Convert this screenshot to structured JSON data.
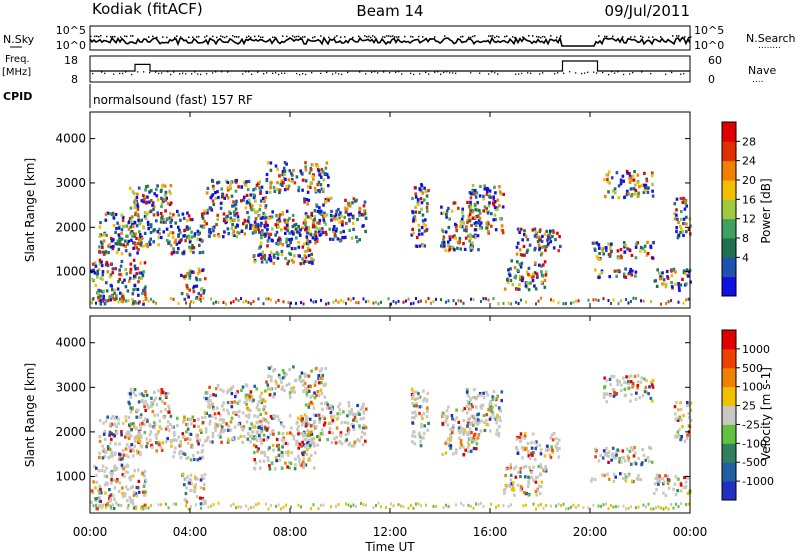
{
  "header": {
    "station": "Kodiak (fitACF)",
    "beam": "Beam 14",
    "date": "09/Jul/2011"
  },
  "summary_panels": {
    "nsky_label": "N.Sky",
    "nsearch_label": "N.Search",
    "nsearch_key": "........",
    "nsky_ticks": [
      "10^5",
      "10^0"
    ],
    "freq_label_1": "Freq.",
    "freq_label_2": "[MHz]",
    "freq_ticks": [
      "18",
      "8"
    ],
    "nave_label": "Nave",
    "nave_key": "....",
    "nave_ticks": [
      "60",
      "0"
    ],
    "cpid_label": "CPID",
    "cpid_text": "normalsound (fast) 157 RF",
    "freq_steps": [
      {
        "t0": 0.0,
        "t1": 1.8,
        "mhz": 11.5
      },
      {
        "t0": 1.8,
        "t1": 2.4,
        "mhz": 14.8
      },
      {
        "t0": 2.4,
        "t1": 18.9,
        "mhz": 11.5
      },
      {
        "t0": 18.9,
        "t1": 20.3,
        "mhz": 16.5
      },
      {
        "t0": 20.3,
        "t1": 24.0,
        "mhz": 11.5
      }
    ]
  },
  "chart_data": [
    {
      "type": "heatmap",
      "quantity": "Power",
      "ylabel": "Slant Range [km]",
      "ylim": [
        180,
        4600
      ],
      "yticks": [
        "4000",
        "3000",
        "2000",
        "1000"
      ],
      "colorbar_label": "Power [dB]",
      "colorbar_ticks": [
        "28",
        "24",
        "20",
        "16",
        "12",
        "8",
        "4"
      ],
      "colors": [
        "#1010e0",
        "#2050b0",
        "#207050",
        "#40a060",
        "#a0c840",
        "#f0c000",
        "#f08000",
        "#e03000",
        "#e00000"
      ]
    },
    {
      "type": "heatmap",
      "quantity": "Velocity",
      "ylabel": "Slant Range [km]",
      "ylim": [
        180,
        4600
      ],
      "yticks": [
        "4000",
        "3000",
        "2000",
        "1000"
      ],
      "colorbar_label": "Velocity [m s-1]",
      "colorbar_ticks": [
        "1000",
        "500",
        "100",
        "25",
        "-25",
        "-100",
        "-500",
        "-1000"
      ],
      "colors": [
        "#2030c0",
        "#2060a0",
        "#308060",
        "#60c040",
        "#c8c8c0",
        "#f0c000",
        "#f08000",
        "#f04000",
        "#e00000"
      ],
      "ground_scatter_color": "#c8c8c0"
    }
  ],
  "time_axis": {
    "xlabel": "Time UT",
    "xlim_hours": [
      0,
      24
    ],
    "ticks": [
      "00:00",
      "04:00",
      "08:00",
      "12:00",
      "16:00",
      "20:00",
      "00:00"
    ]
  }
}
